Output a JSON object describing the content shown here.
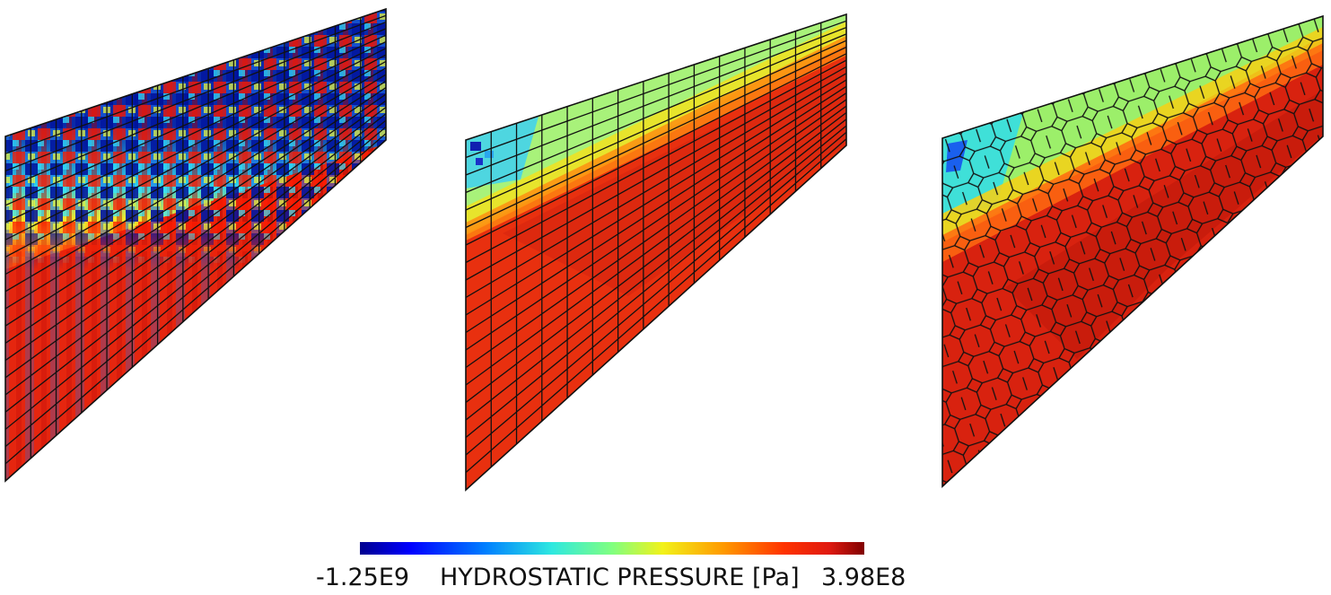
{
  "figure": {
    "panels": [
      {
        "mesh": "structured quadrilateral",
        "pattern": "checkerboard oscillation in the upper region"
      },
      {
        "mesh": "structured quadrilateral",
        "pattern": "smooth field"
      },
      {
        "mesh": "polygonal (Voronoi)",
        "pattern": "smooth field"
      }
    ]
  },
  "colorbar": {
    "min_label": "-1.25E9",
    "max_label": "3.98E8",
    "title": "HYDROSTATIC PRESSURE [Pa]",
    "colormap": [
      "#00008f",
      "#0000ff",
      "#0080ff",
      "#2ee8e0",
      "#80ff80",
      "#f2f21a",
      "#ff9a00",
      "#ff3300",
      "#e01a10",
      "#800000"
    ]
  }
}
